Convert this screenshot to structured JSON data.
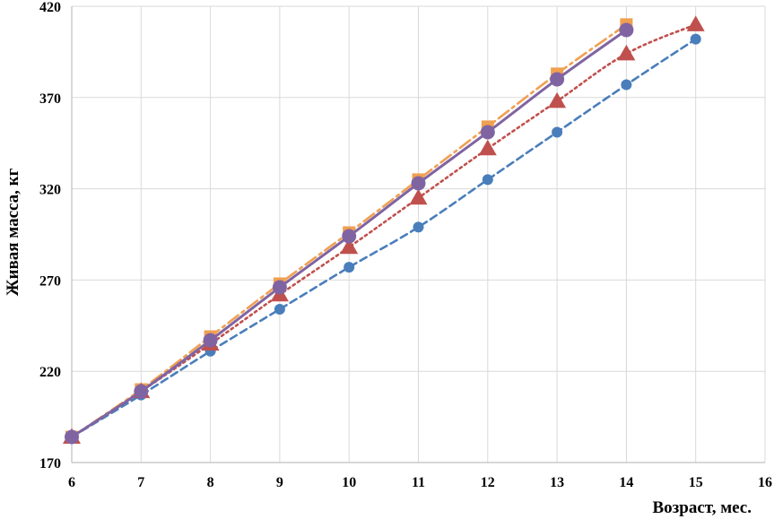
{
  "chart_data": {
    "type": "line",
    "title": "",
    "xlabel": "Возраст, мес.",
    "ylabel": "Живая масса, кг",
    "xlim": [
      6,
      16
    ],
    "ylim": [
      170,
      420
    ],
    "x_ticks": [
      "6",
      "7",
      "8",
      "9",
      "10",
      "11",
      "12",
      "13",
      "14",
      "15",
      "16"
    ],
    "y_ticks": [
      "170",
      "220",
      "270",
      "320",
      "370",
      "420"
    ],
    "grid": true,
    "legend": "none",
    "series": [
      {
        "color": "#4a7ebb",
        "marker": "circle",
        "line": "dashed",
        "x": [
          6,
          7,
          8,
          9,
          10,
          11,
          12,
          13,
          14,
          15
        ],
        "values": [
          184,
          207,
          231,
          254,
          277,
          299,
          325,
          351,
          377,
          402
        ]
      },
      {
        "color": "#f0a050",
        "marker": "square",
        "line": "dash-dot",
        "x": [
          6,
          7,
          8,
          9,
          10,
          11,
          12,
          13,
          14
        ],
        "values": [
          184,
          210,
          239,
          268,
          296,
          325,
          354,
          383,
          410
        ]
      },
      {
        "color": "#c0504d",
        "marker": "triangle",
        "line": "dotted",
        "x": [
          6,
          7,
          8,
          9,
          10,
          11,
          12,
          13,
          14,
          15
        ],
        "values": [
          184,
          209,
          235,
          262,
          288,
          315,
          342,
          368,
          394,
          410
        ]
      },
      {
        "color": "#8064a2",
        "marker": "circle",
        "line": "solid",
        "x": [
          6,
          7,
          8,
          9,
          10,
          11,
          12,
          13,
          14
        ],
        "values": [
          184,
          209,
          237,
          266,
          294,
          323,
          351,
          380,
          407
        ]
      }
    ]
  }
}
